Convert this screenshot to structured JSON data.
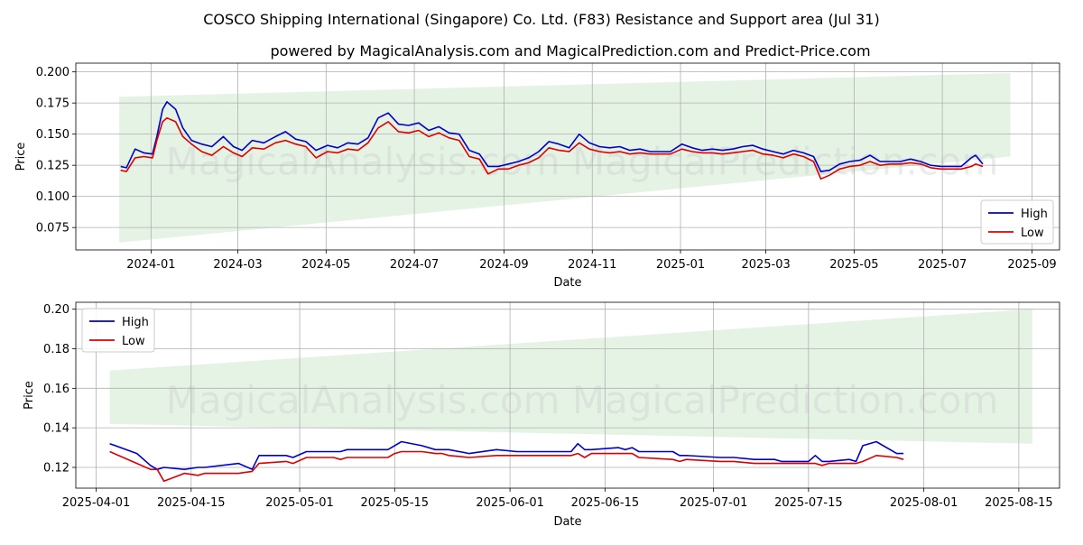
{
  "title": "COSCO Shipping International (Singapore) Co. Ltd. (F83) Resistance and Support area (Jul 31)",
  "subtitle": "powered by MagicalAnalysis.com and MagicalPrediction.com and Predict-Price.com",
  "watermark": "MagicalAnalysis.com    MagicalPrediction.com",
  "colors": {
    "high": "#0000cc",
    "low": "#dd0000",
    "band": "#d4ebd4"
  },
  "chart_data": [
    {
      "type": "line",
      "xlabel": "Date",
      "ylabel": "Price",
      "x_ticks": [
        "2024-01",
        "2024-03",
        "2024-05",
        "2024-07",
        "2024-09",
        "2024-11",
        "2025-01",
        "2025-03",
        "2025-05",
        "2025-07",
        "2025-09"
      ],
      "y_ticks": [
        "0.075",
        "0.100",
        "0.125",
        "0.150",
        "0.175",
        "0.200"
      ],
      "xlim": [
        "2023-11-10",
        "2025-09-20"
      ],
      "ylim": [
        0.057,
        0.207
      ],
      "grid": true,
      "legend": "bottom-right",
      "band": {
        "x": [
          "2023-12-10",
          "2025-08-17"
        ],
        "upper": [
          0.18,
          0.199
        ],
        "lower": [
          0.063,
          0.132
        ]
      },
      "series": [
        {
          "name": "High",
          "x": [
            "2023-12-11",
            "2023-12-15",
            "2023-12-21",
            "2023-12-27",
            "2024-01-02",
            "2024-01-05",
            "2024-01-09",
            "2024-01-12",
            "2024-01-18",
            "2024-01-23",
            "2024-01-29",
            "2024-02-05",
            "2024-02-12",
            "2024-02-20",
            "2024-02-27",
            "2024-03-04",
            "2024-03-11",
            "2024-03-19",
            "2024-03-27",
            "2024-04-03",
            "2024-04-10",
            "2024-04-17",
            "2024-04-24",
            "2024-05-02",
            "2024-05-09",
            "2024-05-16",
            "2024-05-23",
            "2024-05-30",
            "2024-06-06",
            "2024-06-13",
            "2024-06-20",
            "2024-06-27",
            "2024-07-04",
            "2024-07-11",
            "2024-07-18",
            "2024-07-25",
            "2024-08-01",
            "2024-08-08",
            "2024-08-15",
            "2024-08-21",
            "2024-08-28",
            "2024-09-04",
            "2024-09-11",
            "2024-09-18",
            "2024-09-25",
            "2024-10-02",
            "2024-10-09",
            "2024-10-16",
            "2024-10-23",
            "2024-10-30",
            "2024-11-06",
            "2024-11-13",
            "2024-11-20",
            "2024-11-27",
            "2024-12-04",
            "2024-12-11",
            "2024-12-18",
            "2024-12-25",
            "2025-01-02",
            "2025-01-09",
            "2025-01-16",
            "2025-01-23",
            "2025-01-30",
            "2025-02-06",
            "2025-02-13",
            "2025-02-20",
            "2025-02-27",
            "2025-03-06",
            "2025-03-13",
            "2025-03-20",
            "2025-03-27",
            "2025-04-03",
            "2025-04-08",
            "2025-04-14",
            "2025-04-21",
            "2025-04-28",
            "2025-05-05",
            "2025-05-12",
            "2025-05-19",
            "2025-05-26",
            "2025-06-02",
            "2025-06-09",
            "2025-06-16",
            "2025-06-23",
            "2025-06-30",
            "2025-07-07",
            "2025-07-14",
            "2025-07-21",
            "2025-07-24",
            "2025-07-29"
          ],
          "values": [
            0.124,
            0.123,
            0.138,
            0.135,
            0.134,
            0.148,
            0.17,
            0.176,
            0.17,
            0.155,
            0.145,
            0.142,
            0.14,
            0.148,
            0.14,
            0.137,
            0.145,
            0.143,
            0.148,
            0.152,
            0.146,
            0.144,
            0.137,
            0.141,
            0.139,
            0.143,
            0.142,
            0.147,
            0.163,
            0.167,
            0.158,
            0.157,
            0.159,
            0.153,
            0.156,
            0.151,
            0.15,
            0.137,
            0.134,
            0.124,
            0.124,
            0.126,
            0.128,
            0.131,
            0.136,
            0.144,
            0.142,
            0.139,
            0.15,
            0.143,
            0.14,
            0.139,
            0.14,
            0.137,
            0.138,
            0.136,
            0.136,
            0.136,
            0.142,
            0.139,
            0.137,
            0.138,
            0.137,
            0.138,
            0.14,
            0.141,
            0.138,
            0.136,
            0.134,
            0.137,
            0.135,
            0.132,
            0.12,
            0.121,
            0.126,
            0.128,
            0.129,
            0.133,
            0.128,
            0.128,
            0.128,
            0.13,
            0.128,
            0.125,
            0.124,
            0.124,
            0.124,
            0.131,
            0.133,
            0.126
          ]
        },
        {
          "name": "Low",
          "x": [
            "2023-12-11",
            "2023-12-15",
            "2023-12-21",
            "2023-12-27",
            "2024-01-02",
            "2024-01-05",
            "2024-01-09",
            "2024-01-12",
            "2024-01-18",
            "2024-01-23",
            "2024-01-29",
            "2024-02-05",
            "2024-02-12",
            "2024-02-20",
            "2024-02-27",
            "2024-03-04",
            "2024-03-11",
            "2024-03-19",
            "2024-03-27",
            "2024-04-03",
            "2024-04-10",
            "2024-04-17",
            "2024-04-24",
            "2024-05-02",
            "2024-05-09",
            "2024-05-16",
            "2024-05-23",
            "2024-05-30",
            "2024-06-06",
            "2024-06-13",
            "2024-06-20",
            "2024-06-27",
            "2024-07-04",
            "2024-07-11",
            "2024-07-18",
            "2024-07-25",
            "2024-08-01",
            "2024-08-08",
            "2024-08-15",
            "2024-08-21",
            "2024-08-28",
            "2024-09-04",
            "2024-09-11",
            "2024-09-18",
            "2024-09-25",
            "2024-10-02",
            "2024-10-09",
            "2024-10-16",
            "2024-10-23",
            "2024-10-30",
            "2024-11-06",
            "2024-11-13",
            "2024-11-20",
            "2024-11-27",
            "2024-12-04",
            "2024-12-11",
            "2024-12-18",
            "2024-12-25",
            "2025-01-02",
            "2025-01-09",
            "2025-01-16",
            "2025-01-23",
            "2025-01-30",
            "2025-02-06",
            "2025-02-13",
            "2025-02-20",
            "2025-02-27",
            "2025-03-06",
            "2025-03-13",
            "2025-03-20",
            "2025-03-27",
            "2025-04-03",
            "2025-04-08",
            "2025-04-14",
            "2025-04-21",
            "2025-04-28",
            "2025-05-05",
            "2025-05-12",
            "2025-05-19",
            "2025-05-26",
            "2025-06-02",
            "2025-06-09",
            "2025-06-16",
            "2025-06-23",
            "2025-06-30",
            "2025-07-07",
            "2025-07-14",
            "2025-07-21",
            "2025-07-24",
            "2025-07-29"
          ],
          "values": [
            0.121,
            0.12,
            0.131,
            0.132,
            0.131,
            0.145,
            0.16,
            0.163,
            0.16,
            0.148,
            0.142,
            0.136,
            0.133,
            0.14,
            0.135,
            0.132,
            0.139,
            0.138,
            0.143,
            0.145,
            0.142,
            0.14,
            0.131,
            0.136,
            0.135,
            0.138,
            0.137,
            0.143,
            0.155,
            0.16,
            0.152,
            0.151,
            0.153,
            0.148,
            0.151,
            0.147,
            0.145,
            0.132,
            0.13,
            0.118,
            0.122,
            0.122,
            0.125,
            0.127,
            0.131,
            0.139,
            0.137,
            0.136,
            0.143,
            0.138,
            0.136,
            0.135,
            0.136,
            0.134,
            0.135,
            0.134,
            0.134,
            0.134,
            0.138,
            0.136,
            0.135,
            0.135,
            0.134,
            0.135,
            0.136,
            0.137,
            0.134,
            0.133,
            0.131,
            0.134,
            0.132,
            0.128,
            0.114,
            0.117,
            0.122,
            0.124,
            0.125,
            0.128,
            0.125,
            0.126,
            0.126,
            0.127,
            0.126,
            0.123,
            0.122,
            0.122,
            0.122,
            0.124,
            0.126,
            0.124
          ]
        }
      ]
    },
    {
      "type": "line",
      "xlabel": "Date",
      "ylabel": "Price",
      "x_ticks": [
        "2025-04-01",
        "2025-04-15",
        "2025-05-01",
        "2025-05-15",
        "2025-06-01",
        "2025-06-15",
        "2025-07-01",
        "2025-07-15",
        "2025-08-01",
        "2025-08-15"
      ],
      "y_ticks": [
        "0.12",
        "0.14",
        "0.16",
        "0.18",
        "0.20"
      ],
      "xlim": [
        "2025-03-29",
        "2025-08-21"
      ],
      "ylim": [
        0.1095,
        0.2035
      ],
      "grid": true,
      "legend": "top-left",
      "band": {
        "x": [
          "2025-04-03",
          "2025-08-17"
        ],
        "upper": [
          0.169,
          0.2
        ],
        "lower": [
          0.142,
          0.132
        ]
      },
      "series": [
        {
          "name": "High",
          "x": [
            "2025-04-03",
            "2025-04-07",
            "2025-04-09",
            "2025-04-10",
            "2025-04-11",
            "2025-04-14",
            "2025-04-16",
            "2025-04-17",
            "2025-04-22",
            "2025-04-24",
            "2025-04-25",
            "2025-04-29",
            "2025-04-30",
            "2025-05-02",
            "2025-05-06",
            "2025-05-07",
            "2025-05-08",
            "2025-05-09",
            "2025-05-14",
            "2025-05-15",
            "2025-05-16",
            "2025-05-19",
            "2025-05-21",
            "2025-05-22",
            "2025-05-23",
            "2025-05-26",
            "2025-05-30",
            "2025-06-02",
            "2025-06-03",
            "2025-06-04",
            "2025-06-05",
            "2025-06-06",
            "2025-06-10",
            "2025-06-11",
            "2025-06-12",
            "2025-06-13",
            "2025-06-17",
            "2025-06-18",
            "2025-06-19",
            "2025-06-20",
            "2025-06-25",
            "2025-06-26",
            "2025-06-27",
            "2025-07-02",
            "2025-07-04",
            "2025-07-07",
            "2025-07-08",
            "2025-07-09",
            "2025-07-10",
            "2025-07-11",
            "2025-07-15",
            "2025-07-16",
            "2025-07-17",
            "2025-07-18",
            "2025-07-21",
            "2025-07-22",
            "2025-07-23",
            "2025-07-25",
            "2025-07-28",
            "2025-07-29"
          ],
          "values": [
            0.132,
            0.127,
            0.121,
            0.119,
            0.12,
            0.119,
            0.12,
            0.12,
            0.122,
            0.119,
            0.126,
            0.126,
            0.125,
            0.128,
            0.128,
            0.128,
            0.129,
            0.129,
            0.129,
            0.131,
            0.133,
            0.131,
            0.129,
            0.129,
            0.129,
            0.127,
            0.129,
            0.128,
            0.128,
            0.128,
            0.128,
            0.128,
            0.128,
            0.132,
            0.129,
            0.129,
            0.13,
            0.129,
            0.13,
            0.128,
            0.128,
            0.126,
            0.126,
            0.125,
            0.125,
            0.124,
            0.124,
            0.124,
            0.124,
            0.123,
            0.123,
            0.126,
            0.123,
            0.123,
            0.124,
            0.123,
            0.131,
            0.133,
            0.127,
            0.127
          ]
        },
        {
          "name": "Low",
          "x": [
            "2025-04-03",
            "2025-04-07",
            "2025-04-09",
            "2025-04-10",
            "2025-04-11",
            "2025-04-14",
            "2025-04-16",
            "2025-04-17",
            "2025-04-22",
            "2025-04-24",
            "2025-04-25",
            "2025-04-29",
            "2025-04-30",
            "2025-05-02",
            "2025-05-06",
            "2025-05-07",
            "2025-05-08",
            "2025-05-09",
            "2025-05-14",
            "2025-05-15",
            "2025-05-16",
            "2025-05-19",
            "2025-05-21",
            "2025-05-22",
            "2025-05-23",
            "2025-05-26",
            "2025-05-30",
            "2025-06-02",
            "2025-06-03",
            "2025-06-04",
            "2025-06-05",
            "2025-06-06",
            "2025-06-10",
            "2025-06-11",
            "2025-06-12",
            "2025-06-13",
            "2025-06-17",
            "2025-06-18",
            "2025-06-19",
            "2025-06-20",
            "2025-06-25",
            "2025-06-26",
            "2025-06-27",
            "2025-07-02",
            "2025-07-04",
            "2025-07-07",
            "2025-07-08",
            "2025-07-09",
            "2025-07-10",
            "2025-07-11",
            "2025-07-15",
            "2025-07-16",
            "2025-07-17",
            "2025-07-18",
            "2025-07-21",
            "2025-07-22",
            "2025-07-23",
            "2025-07-25",
            "2025-07-28",
            "2025-07-29"
          ],
          "values": [
            0.128,
            0.122,
            0.119,
            0.119,
            0.113,
            0.117,
            0.116,
            0.117,
            0.117,
            0.118,
            0.122,
            0.123,
            0.122,
            0.125,
            0.125,
            0.124,
            0.125,
            0.125,
            0.125,
            0.127,
            0.128,
            0.128,
            0.127,
            0.127,
            0.126,
            0.125,
            0.126,
            0.126,
            0.126,
            0.126,
            0.126,
            0.126,
            0.126,
            0.127,
            0.125,
            0.127,
            0.127,
            0.127,
            0.127,
            0.125,
            0.124,
            0.123,
            0.124,
            0.123,
            0.123,
            0.122,
            0.122,
            0.122,
            0.122,
            0.122,
            0.122,
            0.122,
            0.121,
            0.122,
            0.122,
            0.122,
            0.123,
            0.126,
            0.125,
            0.124
          ]
        }
      ]
    }
  ]
}
